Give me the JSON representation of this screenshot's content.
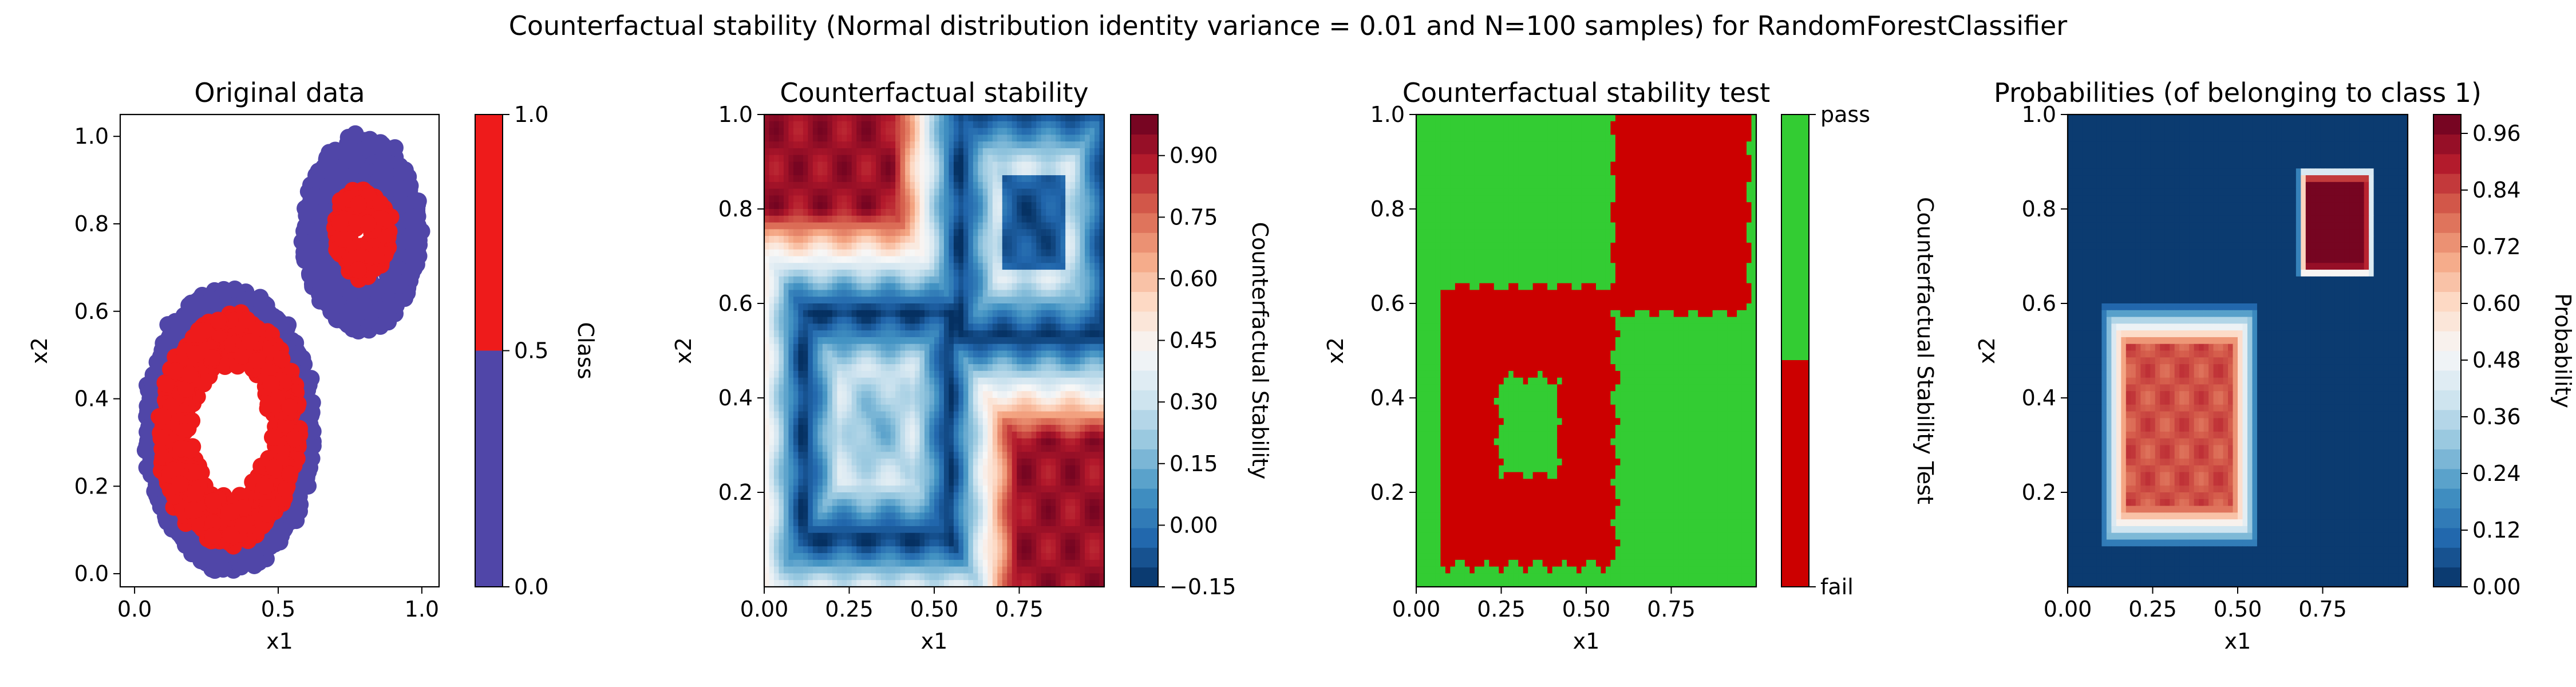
{
  "suptitle": "Counterfactual stability (Normal distribution identity variance = 0.01 and N=100 samples) for RandomForestClassifier",
  "colors": {
    "class0": "#5046a8",
    "class1": "#ee1b1b",
    "pass": "#33cc33",
    "fail": "#cc0000"
  },
  "chart_data": [
    {
      "type": "scatter",
      "title": "Original data",
      "xlabel": "x1",
      "ylabel": "x2",
      "xlim": [
        -0.05,
        1.06
      ],
      "ylim": [
        -0.03,
        1.05
      ],
      "xticks": [
        "0.0",
        "0.5",
        "1.0"
      ],
      "xtick_values": [
        0.0,
        0.5,
        1.0
      ],
      "yticks": [
        "0.0",
        "0.2",
        "0.4",
        "0.6",
        "0.8",
        "1.0"
      ],
      "ytick_values": [
        0.0,
        0.2,
        0.4,
        0.6,
        0.8,
        1.0
      ],
      "clusters": [
        {
          "cx": 0.33,
          "cy": 0.33,
          "r_outer": 0.32,
          "r_inner": 0.17,
          "class": 0
        },
        {
          "cx": 0.33,
          "cy": 0.33,
          "r_outer": 0.26,
          "r_inner": 0.14,
          "class": 1
        },
        {
          "cx": 0.79,
          "cy": 0.78,
          "r_outer": 0.22,
          "r_inner": 0.1,
          "class": 0
        },
        {
          "cx": 0.79,
          "cy": 0.78,
          "r_outer": 0.1,
          "r_inner": 0.03,
          "class": 1
        }
      ],
      "colorbar": {
        "label": "Class",
        "ticks": [
          "0.0",
          "0.5",
          "1.0"
        ],
        "tick_values": [
          0,
          0.5,
          1.0
        ]
      }
    },
    {
      "type": "heatmap",
      "title": "Counterfactual stability",
      "xlabel": "x1",
      "ylabel": "x2",
      "xlim": [
        0.0,
        1.0
      ],
      "ylim": [
        0.0,
        1.0
      ],
      "xticks": [
        "0.00",
        "0.25",
        "0.50",
        "0.75"
      ],
      "xtick_values": [
        0.0,
        0.25,
        0.5,
        0.75
      ],
      "yticks": [
        "0.2",
        "0.4",
        "0.6",
        "0.8",
        "1.0"
      ],
      "ytick_values": [
        0.2,
        0.4,
        0.6,
        0.8,
        1.0
      ],
      "colorbar": {
        "label": "Counterfactual Stability",
        "range": [
          -0.15,
          1.0
        ],
        "ticks": [
          "−0.15",
          "0.00",
          "0.15",
          "0.30",
          "0.45",
          "0.60",
          "0.75",
          "0.90"
        ],
        "tick_values": [
          -0.15,
          0.0,
          0.15,
          0.3,
          0.45,
          0.6,
          0.75,
          0.9
        ]
      }
    },
    {
      "type": "heatmap",
      "title": "Counterfactual stability test",
      "xlabel": "x1",
      "ylabel": "x2",
      "xlim": [
        0.0,
        1.0
      ],
      "ylim": [
        0.0,
        1.0
      ],
      "xticks": [
        "0.00",
        "0.25",
        "0.50",
        "0.75"
      ],
      "xtick_values": [
        0.0,
        0.25,
        0.5,
        0.75
      ],
      "yticks": [
        "0.2",
        "0.4",
        "0.6",
        "0.8",
        "1.0"
      ],
      "ytick_values": [
        0.2,
        0.4,
        0.6,
        0.8,
        1.0
      ],
      "categories": [
        "fail",
        "pass"
      ],
      "colorbar": {
        "label": "Counterfactual Stability Test",
        "ticks": [
          "pass",
          "fail"
        ]
      }
    },
    {
      "type": "heatmap",
      "title": "Probabilities (of belonging to class 1)",
      "xlabel": "x1",
      "ylabel": "x2",
      "xlim": [
        0.0,
        1.0
      ],
      "ylim": [
        0.0,
        1.0
      ],
      "xticks": [
        "0.00",
        "0.25",
        "0.50",
        "0.75"
      ],
      "xtick_values": [
        0.0,
        0.25,
        0.5,
        0.75
      ],
      "yticks": [
        "0.2",
        "0.4",
        "0.6",
        "0.8",
        "1.0"
      ],
      "ytick_values": [
        0.2,
        0.4,
        0.6,
        0.8,
        1.0
      ],
      "colorbar": {
        "label": "Probability",
        "range": [
          0.0,
          1.0
        ],
        "ticks": [
          "0.00",
          "0.12",
          "0.24",
          "0.36",
          "0.48",
          "0.60",
          "0.72",
          "0.84",
          "0.96"
        ],
        "tick_values": [
          0.0,
          0.12,
          0.24,
          0.36,
          0.48,
          0.6,
          0.72,
          0.84,
          0.96
        ]
      }
    }
  ]
}
